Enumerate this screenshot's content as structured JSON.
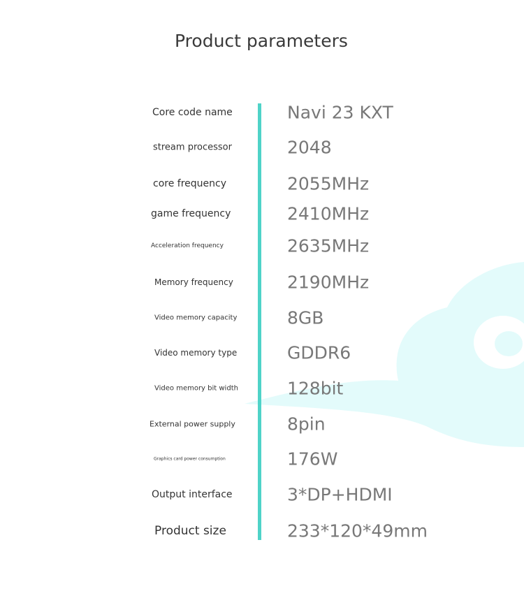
{
  "title": "Product parameters",
  "accent_color": "#4fd3c8",
  "decoration": "cloud",
  "specs": [
    {
      "label": "Core code name",
      "value": "Navi 23 KXT"
    },
    {
      "label": "stream processor",
      "value": "2048"
    },
    {
      "label": "core frequency",
      "value": "2055MHz"
    },
    {
      "label": "game frequency",
      "value": "2410MHz"
    },
    {
      "label": "Acceleration frequency",
      "value": "2635MHz"
    },
    {
      "label": "Memory frequency",
      "value": "2190MHz"
    },
    {
      "label": "Video memory capacity",
      "value": "8GB"
    },
    {
      "label": "Video memory type",
      "value": "GDDR6"
    },
    {
      "label": "Video memory bit width",
      "value": "128bit"
    },
    {
      "label": "External power supply",
      "value": "8pin"
    },
    {
      "label": "Graphics card power consumption",
      "value": "176W"
    },
    {
      "label": "Output interface",
      "value": "3*DP+HDMI"
    },
    {
      "label": "Product size",
      "value": "233*120*49mm"
    }
  ]
}
